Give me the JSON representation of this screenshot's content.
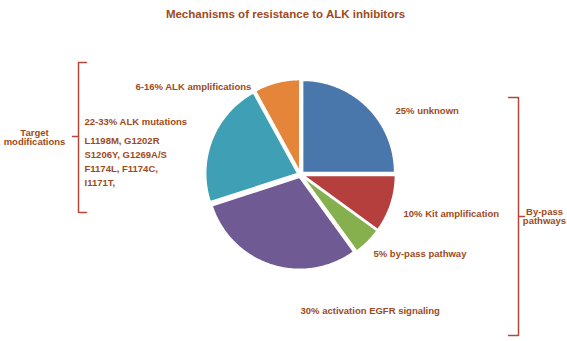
{
  "chart_data": {
    "type": "pie",
    "title": "Mechanisms of resistance to ALK inhibitors",
    "categories": [
      "25% unknown",
      "10% Kit amplification",
      "5% by-pass pathway",
      "30% activation EGFR signaling",
      "22-33% ALK mutations",
      "6-16% ALK amplifications"
    ],
    "values": [
      25,
      10,
      5,
      30,
      22,
      8
    ],
    "colors": [
      "#4a77ab",
      "#b53f3c",
      "#86b04e",
      "#6f5a93",
      "#3fa0b5",
      "#e5853a"
    ],
    "tick_labels": false,
    "mutations": [
      "L1198M, G1202R",
      "S1206Y, G1269A/S",
      "F1174L, F1174C,",
      "I1171T,"
    ],
    "annotations": [
      "Target modifications",
      "By-pass pathways"
    ]
  }
}
